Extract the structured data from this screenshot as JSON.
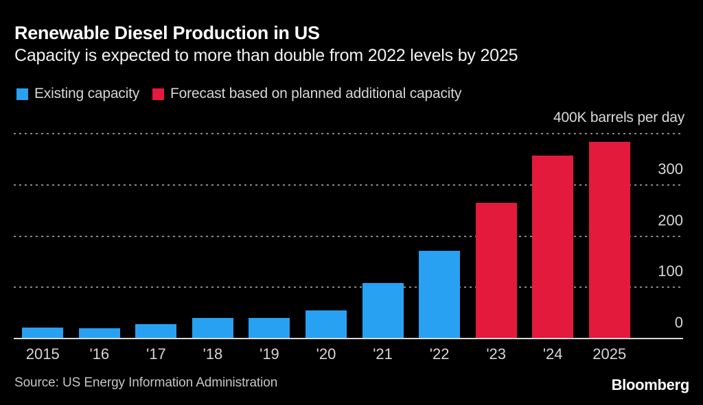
{
  "header": {
    "title": "Renewable Diesel Production in US",
    "subtitle": "Capacity is expected to more than double from 2022 levels by 2025"
  },
  "legend": {
    "items": [
      {
        "id": "existing",
        "label": "Existing capacity",
        "color": "#28a1f2"
      },
      {
        "id": "forecast",
        "label": "Forecast based on planned additional capacity",
        "color": "#e41a3c"
      }
    ]
  },
  "chart_data": {
    "type": "bar",
    "title": "Renewable Diesel Production in US",
    "subtitle": "Capacity is expected to more than double from 2022 levels by 2025",
    "unit_label": "400K barrels per day",
    "ylabel": "barrels per day (thousands)",
    "ylim": [
      0,
      400
    ],
    "ytick_labels": [
      0,
      100,
      200,
      300
    ],
    "gridlines": [
      100,
      200,
      300,
      400
    ],
    "grid_style": "horizontal-dotted",
    "legend_position": "top-left",
    "categories": [
      "2015",
      "'16",
      "'17",
      "'18",
      "'19",
      "'20",
      "'21",
      "'22",
      "'23",
      "'24",
      "2025"
    ],
    "values": [
      20,
      19,
      27,
      39,
      39,
      53,
      107,
      170,
      263,
      356,
      383
    ],
    "bar_series": [
      "existing",
      "existing",
      "existing",
      "existing",
      "existing",
      "existing",
      "existing",
      "existing",
      "forecast",
      "forecast",
      "forecast"
    ],
    "series": [
      {
        "id": "existing",
        "name": "Existing capacity",
        "color": "#28a1f2"
      },
      {
        "id": "forecast",
        "name": "Forecast based on planned additional capacity",
        "color": "#e41a3c"
      }
    ]
  },
  "footer": {
    "source": "Source: US Energy Information Administration",
    "brand": "Bloomberg"
  },
  "colors": {
    "background": "#000000",
    "title_text": "#ffffff",
    "axis_text": "#d6d6d6",
    "gridline": "#8a8a8a",
    "baseline": "#d9d9d9"
  }
}
